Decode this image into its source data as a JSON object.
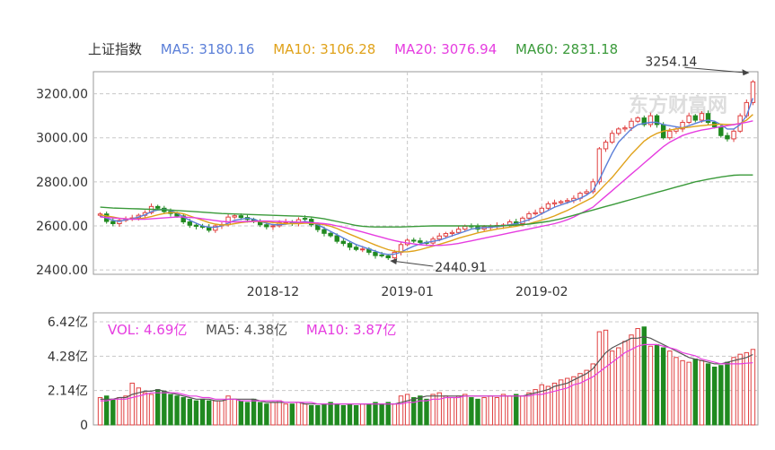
{
  "index_name": "上证指数",
  "price_legend": [
    {
      "label": "MA5: 3180.16",
      "color": "#5b7fd8"
    },
    {
      "label": "MA10: 3106.28",
      "color": "#e0a21a"
    },
    {
      "label": "MA20: 3076.94",
      "color": "#e63de0"
    },
    {
      "label": "MA60: 2831.18",
      "color": "#3a9a3a"
    }
  ],
  "volume_legend": [
    {
      "label": "VOL: 4.69亿",
      "color": "#e63de0"
    },
    {
      "label": "MA5: 4.38亿",
      "color": "#555555"
    },
    {
      "label": "MA10: 3.87亿",
      "color": "#e63de0"
    }
  ],
  "watermark": "东方财富网",
  "colors": {
    "up": "#e04040",
    "down": "#208a20",
    "grid": "#c8c8c8",
    "axis": "#888888"
  },
  "chart_data": [
    {
      "type": "candlestick",
      "title": "上证指数",
      "x_ticks": [
        "2018-12",
        "2019-01",
        "2019-02"
      ],
      "y_ticks": [
        "3200.00",
        "3000.00",
        "2800.00",
        "2600.00",
        "2400.00"
      ],
      "ylim": [
        2380,
        3300
      ],
      "grid": true,
      "annotations": [
        {
          "text": "3254.14",
          "type": "high"
        },
        {
          "text": "2440.91",
          "type": "low"
        }
      ],
      "close": [
        2654,
        2620,
        2610,
        2625,
        2632,
        2636,
        2648,
        2660,
        2688,
        2680,
        2665,
        2656,
        2645,
        2618,
        2603,
        2598,
        2594,
        2580,
        2600,
        2605,
        2640,
        2646,
        2638,
        2629,
        2620,
        2605,
        2596,
        2600,
        2615,
        2618,
        2612,
        2628,
        2630,
        2605,
        2583,
        2566,
        2555,
        2530,
        2520,
        2503,
        2493,
        2495,
        2480,
        2465,
        2464,
        2455,
        2480,
        2515,
        2535,
        2532,
        2525,
        2522,
        2540,
        2554,
        2565,
        2570,
        2585,
        2598,
        2596,
        2585,
        2596,
        2596,
        2602,
        2604,
        2618,
        2610,
        2635,
        2655,
        2660,
        2680,
        2700,
        2705,
        2710,
        2715,
        2725,
        2748,
        2755,
        2800,
        2950,
        2980,
        3020,
        3040,
        3045,
        3075,
        3090,
        3060,
        3100,
        3060,
        3000,
        3030,
        3040,
        3070,
        3100,
        3080,
        3110,
        3070,
        3050,
        3010,
        2995,
        3030,
        3100,
        3160,
        3254
      ],
      "ma5": [
        2645,
        2635,
        2625,
        2620,
        2628,
        2632,
        2640,
        2650,
        2665,
        2672,
        2675,
        2670,
        2658,
        2640,
        2625,
        2612,
        2600,
        2594,
        2594,
        2600,
        2612,
        2625,
        2630,
        2635,
        2630,
        2620,
        2612,
        2605,
        2605,
        2608,
        2612,
        2615,
        2620,
        2615,
        2605,
        2590,
        2575,
        2560,
        2545,
        2530,
        2515,
        2505,
        2495,
        2485,
        2475,
        2470,
        2472,
        2480,
        2495,
        2508,
        2518,
        2525,
        2530,
        2535,
        2545,
        2555,
        2565,
        2575,
        2585,
        2590,
        2592,
        2594,
        2596,
        2600,
        2605,
        2610,
        2618,
        2628,
        2640,
        2655,
        2670,
        2685,
        2695,
        2705,
        2715,
        2725,
        2740,
        2760,
        2810,
        2870,
        2930,
        2980,
        3010,
        3040,
        3060,
        3065,
        3070,
        3070,
        3060,
        3055,
        3050,
        3045,
        3055,
        3065,
        3075,
        3080,
        3075,
        3060,
        3040,
        3040,
        3060,
        3100,
        3180
      ],
      "ma10": [
        2650,
        2645,
        2640,
        2635,
        2632,
        2630,
        2632,
        2636,
        2642,
        2650,
        2656,
        2660,
        2660,
        2655,
        2645,
        2635,
        2625,
        2615,
        2608,
        2604,
        2605,
        2610,
        2615,
        2618,
        2620,
        2620,
        2618,
        2615,
        2612,
        2610,
        2610,
        2610,
        2612,
        2612,
        2610,
        2605,
        2598,
        2588,
        2575,
        2562,
        2550,
        2538,
        2525,
        2513,
        2502,
        2492,
        2485,
        2482,
        2482,
        2486,
        2492,
        2500,
        2508,
        2516,
        2525,
        2534,
        2544,
        2552,
        2560,
        2568,
        2574,
        2580,
        2585,
        2590,
        2594,
        2598,
        2604,
        2610,
        2618,
        2626,
        2635,
        2645,
        2658,
        2670,
        2685,
        2700,
        2715,
        2730,
        2760,
        2790,
        2820,
        2855,
        2890,
        2925,
        2955,
        2985,
        3005,
        3020,
        3030,
        3035,
        3040,
        3045,
        3048,
        3052,
        3055,
        3058,
        3060,
        3062,
        3060,
        3060,
        3065,
        3080,
        3106
      ],
      "ma20": [
        2640,
        2638,
        2636,
        2634,
        2632,
        2630,
        2630,
        2630,
        2632,
        2634,
        2636,
        2638,
        2640,
        2640,
        2638,
        2636,
        2632,
        2628,
        2624,
        2620,
        2618,
        2618,
        2619,
        2620,
        2621,
        2622,
        2622,
        2621,
        2620,
        2619,
        2618,
        2617,
        2616,
        2615,
        2613,
        2610,
        2606,
        2600,
        2594,
        2587,
        2580,
        2572,
        2564,
        2556,
        2548,
        2540,
        2533,
        2527,
        2522,
        2518,
        2514,
        2512,
        2511,
        2511,
        2513,
        2516,
        2520,
        2526,
        2532,
        2538,
        2544,
        2550,
        2556,
        2562,
        2568,
        2574,
        2580,
        2586,
        2592,
        2598,
        2604,
        2610,
        2618,
        2628,
        2640,
        2655,
        2670,
        2685,
        2710,
        2735,
        2760,
        2785,
        2810,
        2835,
        2860,
        2885,
        2910,
        2935,
        2960,
        2980,
        2995,
        3010,
        3020,
        3028,
        3035,
        3040,
        3045,
        3050,
        3055,
        3060,
        3065,
        3070,
        3077
      ],
      "ma60": [
        2685,
        2683,
        2681,
        2680,
        2679,
        2678,
        2677,
        2676,
        2675,
        2674,
        2673,
        2672,
        2670,
        2668,
        2666,
        2664,
        2662,
        2660,
        2658,
        2656,
        2655,
        2654,
        2653,
        2652,
        2651,
        2650,
        2649,
        2648,
        2647,
        2646,
        2645,
        2644,
        2642,
        2640,
        2636,
        2632,
        2626,
        2620,
        2614,
        2608,
        2602,
        2598,
        2596,
        2595,
        2595,
        2595,
        2595,
        2595,
        2596,
        2597,
        2598,
        2599,
        2600,
        2600,
        2600,
        2600,
        2600,
        2600,
        2600,
        2600,
        2600,
        2600,
        2600,
        2601,
        2602,
        2604,
        2606,
        2608,
        2612,
        2616,
        2620,
        2626,
        2632,
        2640,
        2648,
        2656,
        2664,
        2672,
        2680,
        2688,
        2696,
        2704,
        2712,
        2720,
        2728,
        2736,
        2744,
        2752,
        2760,
        2768,
        2776,
        2784,
        2792,
        2800,
        2806,
        2812,
        2817,
        2822,
        2826,
        2830,
        2831,
        2831,
        2831
      ]
    },
    {
      "type": "bar",
      "title": "",
      "y_ticks": [
        "6.42亿",
        "4.28亿",
        "2.14亿",
        "0"
      ],
      "ylim": [
        0,
        6.42
      ],
      "grid": true,
      "volume": [
        1.7,
        1.8,
        1.6,
        1.7,
        1.8,
        2.6,
        2.3,
        2.0,
        1.9,
        2.2,
        2.1,
        1.9,
        1.8,
        1.7,
        1.6,
        1.5,
        1.6,
        1.5,
        1.5,
        1.5,
        1.8,
        1.6,
        1.5,
        1.4,
        1.6,
        1.4,
        1.3,
        1.4,
        1.5,
        1.3,
        1.3,
        1.4,
        1.3,
        1.2,
        1.2,
        1.3,
        1.4,
        1.3,
        1.2,
        1.3,
        1.2,
        1.3,
        1.3,
        1.4,
        1.3,
        1.4,
        1.3,
        1.8,
        1.9,
        1.7,
        1.8,
        1.6,
        1.9,
        2.0,
        1.8,
        1.7,
        1.8,
        1.9,
        1.7,
        1.6,
        1.7,
        1.8,
        1.7,
        1.9,
        1.8,
        1.9,
        1.8,
        2.0,
        2.2,
        2.5,
        2.4,
        2.6,
        2.8,
        2.9,
        3.0,
        3.2,
        3.4,
        3.8,
        5.8,
        5.9,
        4.6,
        4.8,
        5.2,
        5.6,
        6.0,
        6.1,
        4.9,
        5.0,
        4.8,
        4.6,
        4.2,
        4.0,
        3.9,
        4.1,
        4.0,
        3.8,
        3.6,
        3.7,
        3.9,
        4.2,
        4.4,
        4.5,
        4.7
      ],
      "ma5": [
        1.6,
        1.6,
        1.6,
        1.7,
        1.7,
        1.9,
        2.0,
        2.1,
        2.1,
        2.2,
        2.1,
        2.0,
        1.9,
        1.8,
        1.7,
        1.6,
        1.6,
        1.6,
        1.5,
        1.5,
        1.6,
        1.6,
        1.6,
        1.6,
        1.6,
        1.5,
        1.4,
        1.4,
        1.4,
        1.4,
        1.4,
        1.4,
        1.3,
        1.3,
        1.3,
        1.3,
        1.3,
        1.3,
        1.3,
        1.3,
        1.3,
        1.3,
        1.3,
        1.3,
        1.3,
        1.3,
        1.3,
        1.4,
        1.5,
        1.6,
        1.7,
        1.8,
        1.8,
        1.8,
        1.8,
        1.8,
        1.8,
        1.8,
        1.8,
        1.8,
        1.8,
        1.8,
        1.8,
        1.8,
        1.8,
        1.8,
        1.8,
        1.9,
        2.0,
        2.1,
        2.2,
        2.4,
        2.5,
        2.6,
        2.8,
        3.0,
        3.2,
        3.5,
        4.0,
        4.5,
        4.8,
        5.0,
        5.2,
        5.4,
        5.4,
        5.5,
        5.4,
        5.2,
        5.0,
        4.8,
        4.6,
        4.4,
        4.2,
        4.1,
        4.0,
        3.9,
        3.8,
        3.8,
        3.9,
        4.0,
        4.1,
        4.2,
        4.38
      ],
      "ma10": [
        1.5,
        1.5,
        1.6,
        1.6,
        1.6,
        1.7,
        1.8,
        1.9,
        2.0,
        2.0,
        2.0,
        2.0,
        2.0,
        1.9,
        1.8,
        1.8,
        1.7,
        1.7,
        1.6,
        1.6,
        1.6,
        1.6,
        1.5,
        1.5,
        1.5,
        1.5,
        1.5,
        1.5,
        1.5,
        1.4,
        1.4,
        1.4,
        1.4,
        1.4,
        1.3,
        1.3,
        1.3,
        1.3,
        1.3,
        1.3,
        1.3,
        1.3,
        1.3,
        1.3,
        1.3,
        1.3,
        1.3,
        1.3,
        1.4,
        1.4,
        1.5,
        1.5,
        1.6,
        1.6,
        1.7,
        1.7,
        1.7,
        1.8,
        1.8,
        1.8,
        1.8,
        1.8,
        1.8,
        1.8,
        1.8,
        1.8,
        1.8,
        1.8,
        1.9,
        1.9,
        2.0,
        2.1,
        2.2,
        2.3,
        2.5,
        2.6,
        2.8,
        3.0,
        3.3,
        3.6,
        3.9,
        4.2,
        4.5,
        4.7,
        4.9,
        5.0,
        5.0,
        5.0,
        4.9,
        4.8,
        4.7,
        4.5,
        4.4,
        4.3,
        4.1,
        4.0,
        3.9,
        3.8,
        3.8,
        3.8,
        3.8,
        3.84,
        3.87
      ]
    }
  ]
}
